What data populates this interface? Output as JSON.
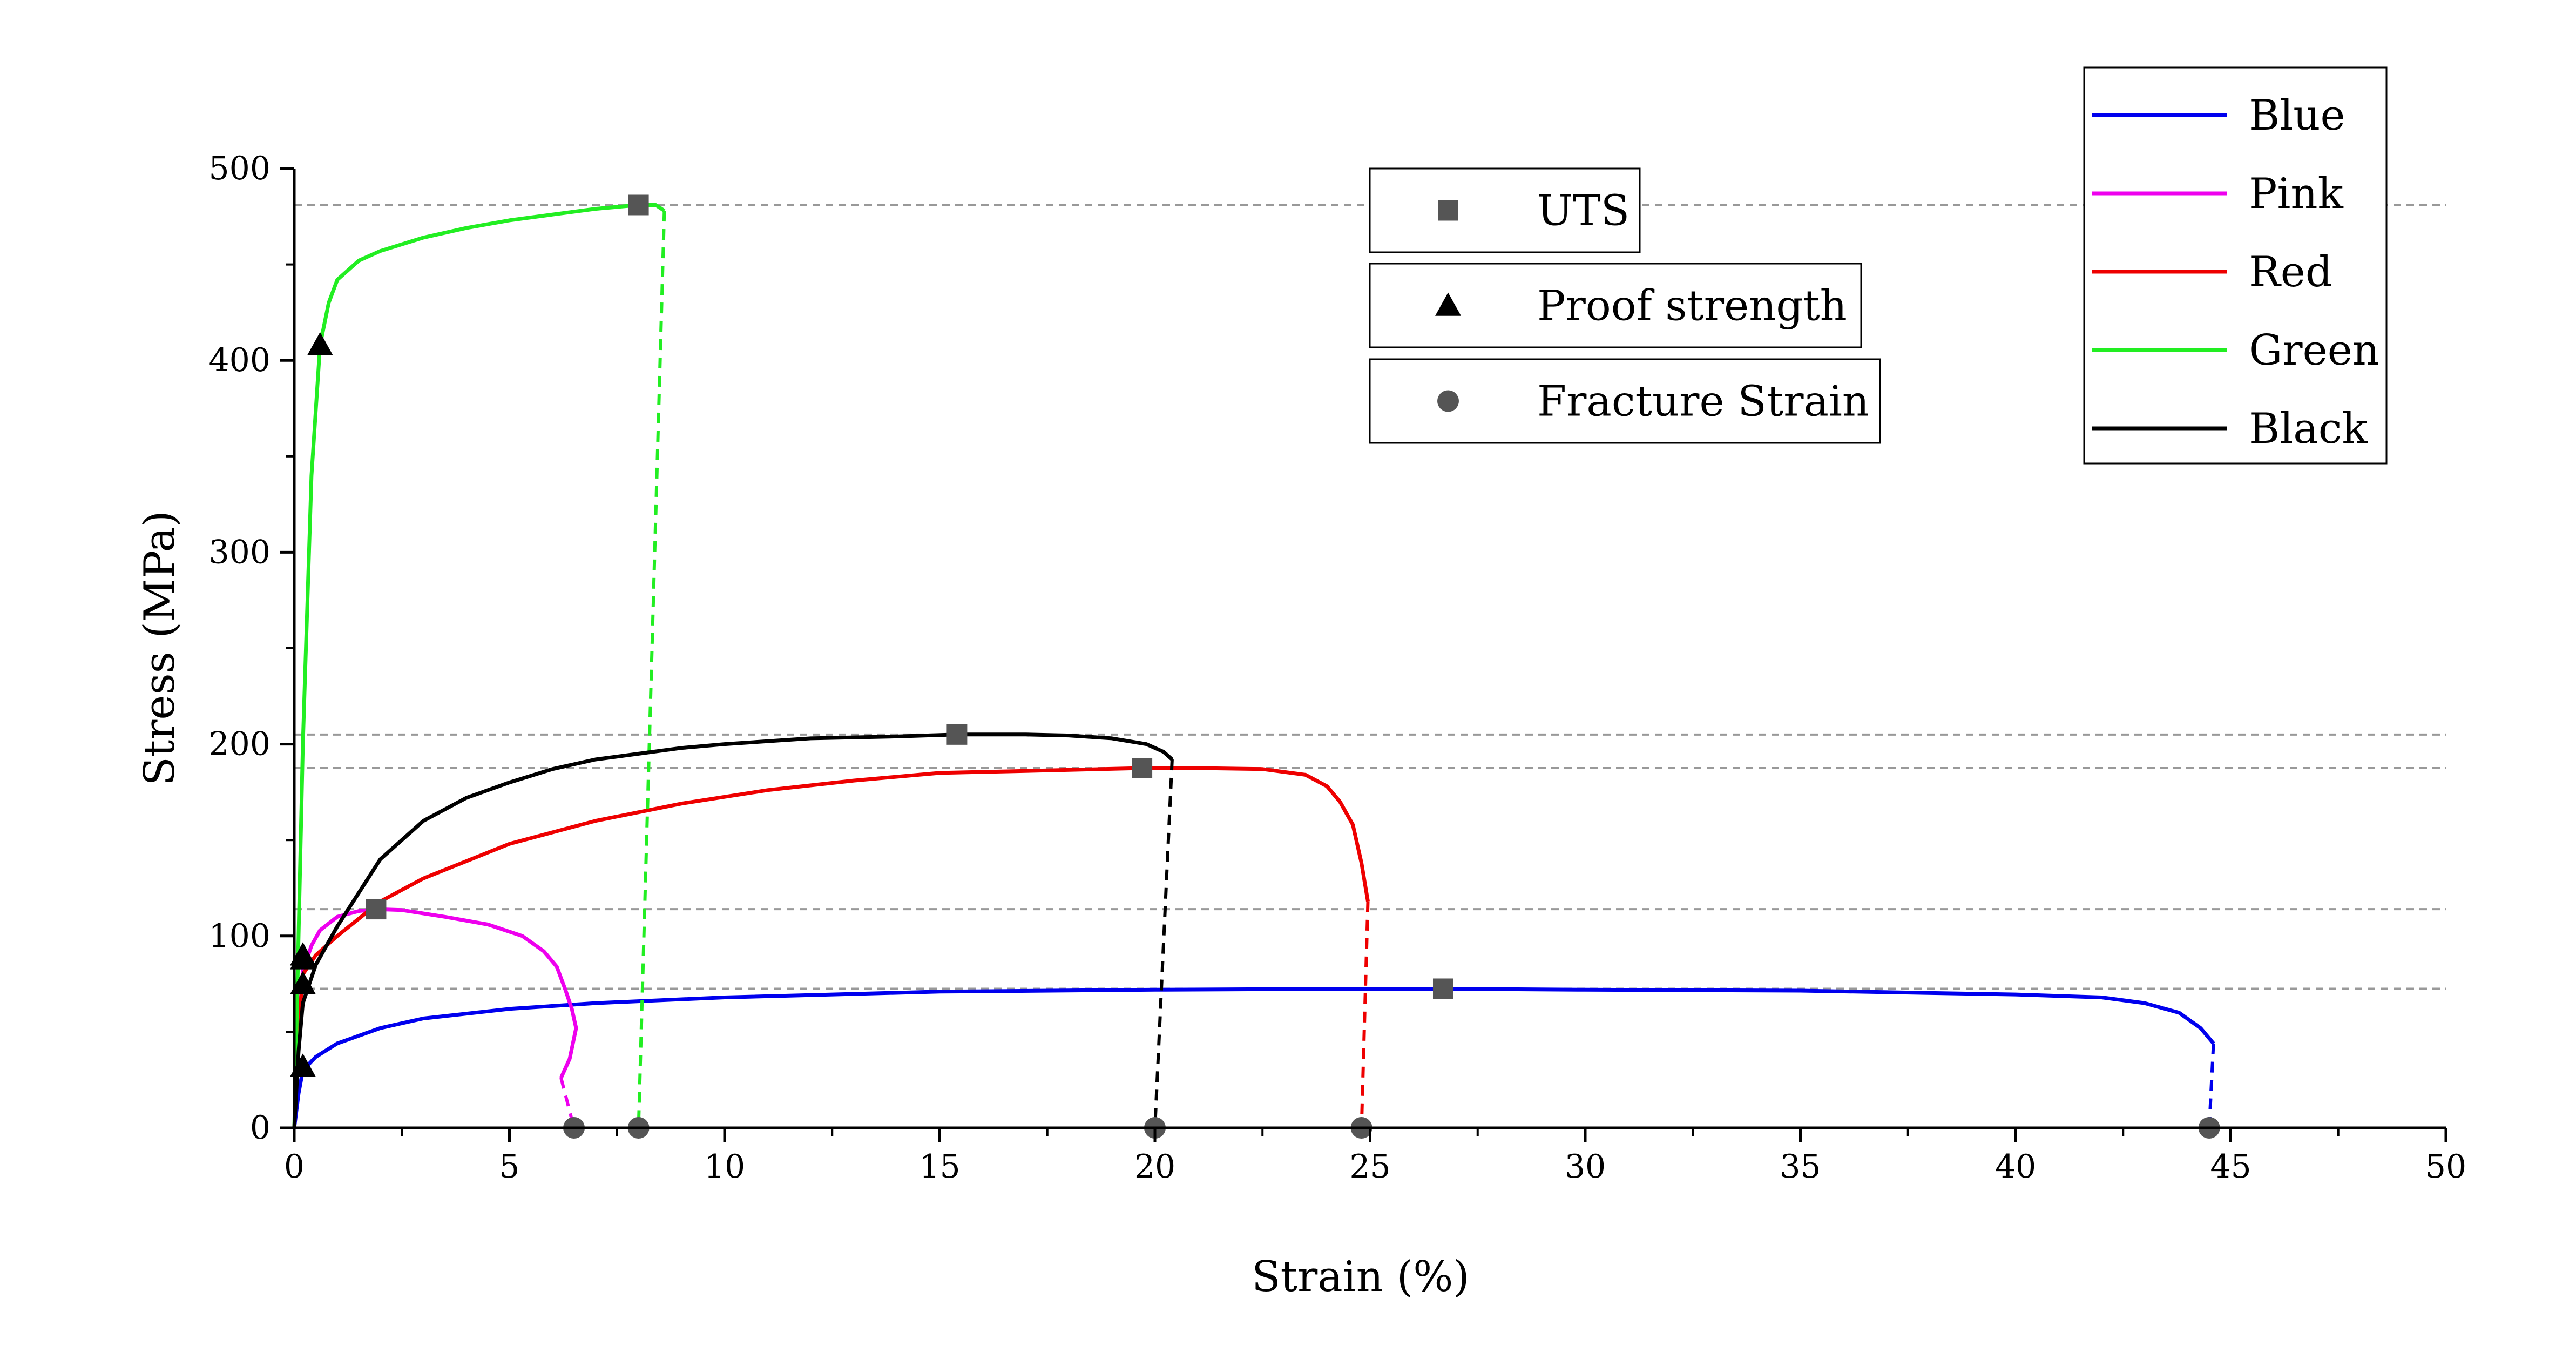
{
  "chart_data": {
    "type": "line",
    "title": "",
    "xlabel": "Strain (%)",
    "ylabel": "Stress (MPa)",
    "xlim": [
      0,
      50
    ],
    "ylim": [
      0,
      500
    ],
    "x_ticks": [
      0,
      5,
      10,
      15,
      20,
      25,
      30,
      35,
      40,
      45,
      50
    ],
    "y_ticks": [
      0,
      100,
      200,
      300,
      400,
      500
    ],
    "grid": false,
    "legend_placement": "top-right",
    "series": [
      {
        "name": "Blue",
        "color": "#0000ee",
        "points": [
          [
            0,
            0
          ],
          [
            0.1,
            18
          ],
          [
            0.2,
            30
          ],
          [
            0.5,
            37
          ],
          [
            1,
            44
          ],
          [
            2,
            52
          ],
          [
            3,
            57
          ],
          [
            5,
            62
          ],
          [
            7,
            65
          ],
          [
            10,
            68
          ],
          [
            15,
            71
          ],
          [
            20,
            72
          ],
          [
            25,
            72.5
          ],
          [
            26.7,
            72.5
          ],
          [
            30,
            72
          ],
          [
            35,
            71.5
          ],
          [
            40,
            69.5
          ],
          [
            42,
            68
          ],
          [
            43,
            65
          ],
          [
            43.8,
            60
          ],
          [
            44.3,
            52
          ],
          [
            44.6,
            44
          ]
        ],
        "fracture_drop": [
          [
            44.6,
            44
          ],
          [
            44.5,
            0
          ]
        ],
        "uts": [
          26.7,
          72.5
        ],
        "proof_strength": [
          0.2,
          32
        ],
        "fracture_strain": [
          44.5,
          0
        ]
      },
      {
        "name": "Pink",
        "color": "#ee00ee",
        "points": [
          [
            0,
            0
          ],
          [
            0.1,
            50
          ],
          [
            0.2,
            82
          ],
          [
            0.4,
            95
          ],
          [
            0.6,
            103
          ],
          [
            1,
            110
          ],
          [
            1.5,
            113
          ],
          [
            1.9,
            114
          ],
          [
            2.5,
            113.5
          ],
          [
            3.5,
            110
          ],
          [
            4.5,
            106
          ],
          [
            5.3,
            100
          ],
          [
            5.8,
            92
          ],
          [
            6.1,
            84
          ],
          [
            6.3,
            72
          ],
          [
            6.45,
            62
          ],
          [
            6.55,
            52
          ],
          [
            6.4,
            36
          ],
          [
            6.2,
            26
          ]
        ],
        "fracture_drop": [
          [
            6.2,
            26
          ],
          [
            6.5,
            0
          ]
        ],
        "uts": [
          1.9,
          114
        ],
        "proof_strength": [
          0.2,
          75
        ],
        "fracture_strain": [
          6.5,
          0
        ]
      },
      {
        "name": "Red",
        "color": "#ee0000",
        "points": [
          [
            0,
            0
          ],
          [
            0.1,
            50
          ],
          [
            0.2,
            80
          ],
          [
            0.5,
            90
          ],
          [
            1,
            100
          ],
          [
            2,
            118
          ],
          [
            3,
            130
          ],
          [
            5,
            148
          ],
          [
            7,
            160
          ],
          [
            9,
            169
          ],
          [
            11,
            176
          ],
          [
            13,
            181
          ],
          [
            15,
            185
          ],
          [
            17,
            186
          ],
          [
            19.7,
            187.5
          ],
          [
            21,
            187.5
          ],
          [
            22.5,
            187
          ],
          [
            23.5,
            184
          ],
          [
            24,
            178
          ],
          [
            24.3,
            170
          ],
          [
            24.6,
            158
          ],
          [
            24.8,
            138
          ],
          [
            24.95,
            118
          ]
        ],
        "fracture_drop": [
          [
            24.95,
            118
          ],
          [
            24.8,
            0
          ]
        ],
        "uts": [
          19.7,
          187.5
        ],
        "proof_strength": [
          0.2,
          88
        ],
        "fracture_strain": [
          24.8,
          0
        ]
      },
      {
        "name": "Green",
        "color": "#22ee22",
        "points": [
          [
            0,
            0
          ],
          [
            0.2,
            200
          ],
          [
            0.4,
            340
          ],
          [
            0.6,
            408
          ],
          [
            0.8,
            430
          ],
          [
            1,
            442
          ],
          [
            1.5,
            452
          ],
          [
            2,
            457
          ],
          [
            3,
            464
          ],
          [
            4,
            469
          ],
          [
            5,
            473
          ],
          [
            6,
            476
          ],
          [
            7,
            479
          ],
          [
            8,
            481
          ],
          [
            8.4,
            481
          ],
          [
            8.6,
            478
          ]
        ],
        "fracture_drop": [
          [
            8.6,
            478
          ],
          [
            8.0,
            0
          ]
        ],
        "uts": [
          8.0,
          481
        ],
        "proof_strength": [
          0.6,
          408
        ],
        "fracture_strain": [
          8.0,
          0
        ]
      },
      {
        "name": "Black",
        "color": "#000000",
        "points": [
          [
            0,
            0
          ],
          [
            0.1,
            40
          ],
          [
            0.2,
            65
          ],
          [
            0.5,
            85
          ],
          [
            1,
            105
          ],
          [
            2,
            140
          ],
          [
            3,
            160
          ],
          [
            4,
            172
          ],
          [
            5,
            180
          ],
          [
            6,
            187
          ],
          [
            7,
            192
          ],
          [
            8,
            195
          ],
          [
            9,
            198
          ],
          [
            10,
            200
          ],
          [
            12,
            203
          ],
          [
            14,
            204
          ],
          [
            15.4,
            205
          ],
          [
            17,
            205
          ],
          [
            18,
            204.5
          ],
          [
            19,
            203
          ],
          [
            19.8,
            200
          ],
          [
            20.2,
            196
          ],
          [
            20.4,
            192
          ]
        ],
        "fracture_drop": [
          [
            20.4,
            192
          ],
          [
            20.0,
            0
          ]
        ],
        "uts": [
          15.4,
          205
        ],
        "proof_strength": [
          0.2,
          90
        ],
        "fracture_strain": [
          20.0,
          0
        ]
      }
    ],
    "reference_lines": [
      481,
      205,
      187.5,
      114,
      72.5
    ],
    "marker_legend": [
      {
        "label": "UTS",
        "marker": "square"
      },
      {
        "label": "Proof strength",
        "marker": "triangle"
      },
      {
        "label": "Fracture Strain",
        "marker": "circle"
      }
    ],
    "marker_color": "#555555"
  }
}
